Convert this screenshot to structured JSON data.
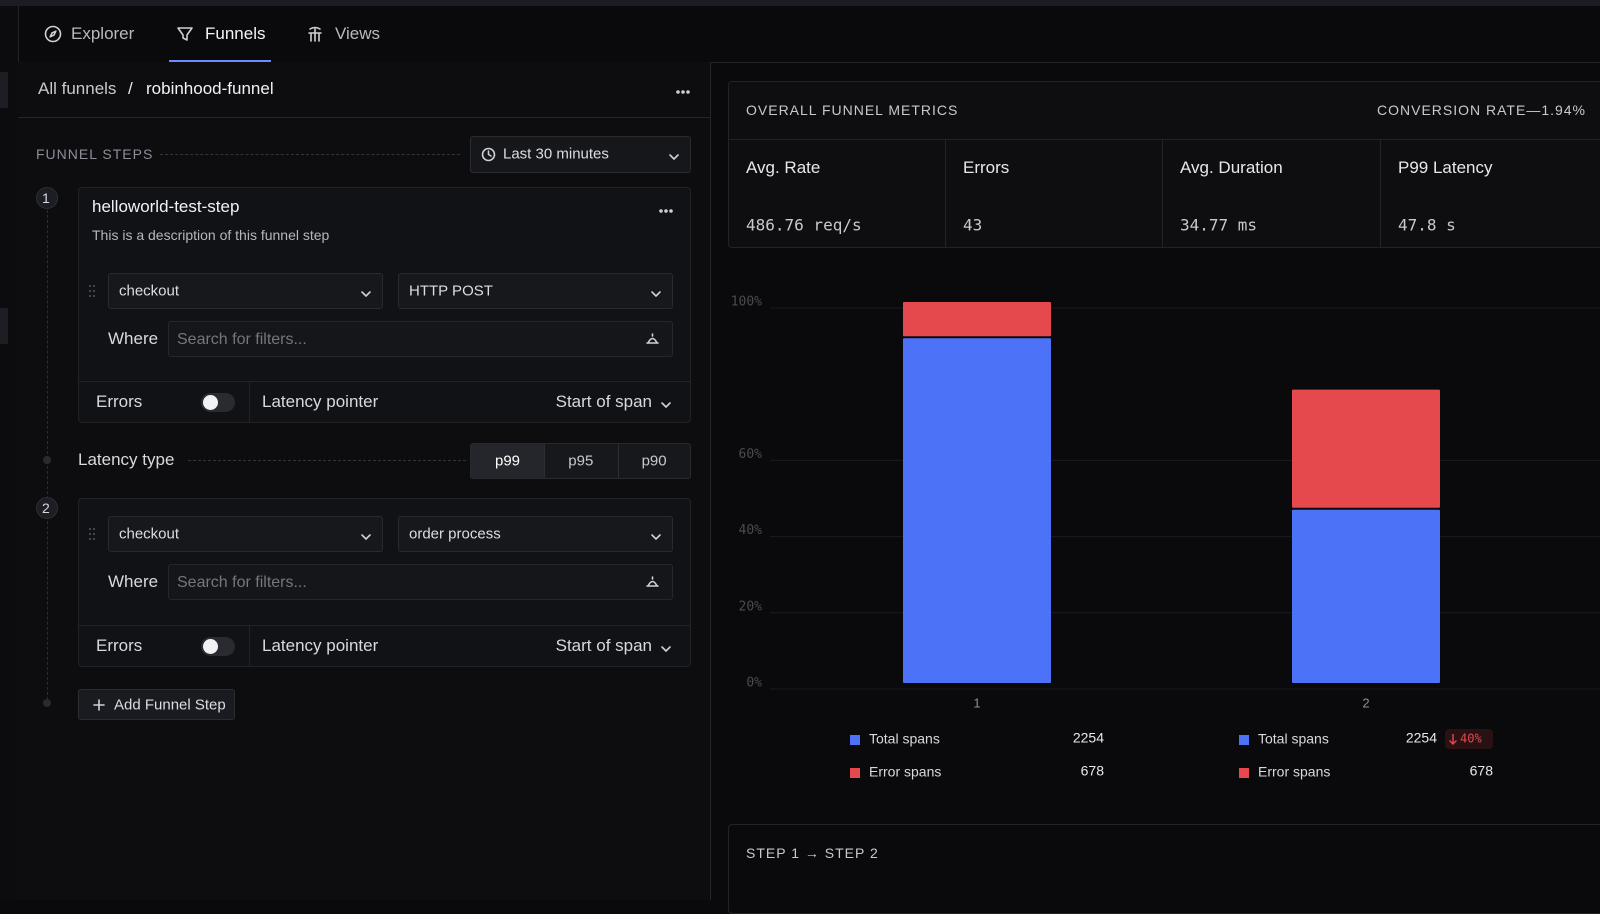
{
  "tabs": [
    "Explorer",
    "Funnels",
    "Views"
  ],
  "active_tab": 1,
  "breadcrumb": {
    "root": "All funnels",
    "separator": "/",
    "current": "robinhood-funnel"
  },
  "funnel_steps": {
    "heading": "FUNNEL STEPS",
    "time_range": "Last 30 minutes",
    "steps": [
      {
        "number": 1,
        "name": "helloworld-test-step",
        "description": "This is a description of this funnel step",
        "service": "checkout",
        "operation": "HTTP POST",
        "where_label": "Where",
        "filter_placeholder": "Search for filters...",
        "errors_label": "Errors",
        "latency_pointer_label": "Latency pointer",
        "latency_pointer": "Start of span"
      },
      {
        "number": 2,
        "service": "checkout",
        "operation": "order process",
        "where_label": "Where",
        "filter_placeholder": "Search for filters...",
        "errors_label": "Errors",
        "latency_pointer_label": "Latency pointer",
        "latency_pointer": "Start of span"
      }
    ],
    "latency_type": {
      "label": "Latency type",
      "options": [
        "p99",
        "p95",
        "p90"
      ],
      "selected_index": 0
    },
    "add_step": "Add Funnel Step"
  },
  "metrics": {
    "title": "OVERALL FUNNEL METRICS",
    "conversion": "CONVERSION RATE—1.94%",
    "cells": [
      {
        "label": "Avg. Rate",
        "value": "486.76 req/s"
      },
      {
        "label": "Errors",
        "value": "43"
      },
      {
        "label": "Avg. Duration",
        "value": "34.77 ms"
      },
      {
        "label": "P99 Latency",
        "value": "47.8 s"
      }
    ]
  },
  "chart_data": {
    "type": "stacked_bar",
    "categories": [
      "1",
      "2"
    ],
    "series": [
      {
        "name": "Total spans",
        "color": "#4c73f7",
        "values": [
          91,
          46
        ],
        "totals": [
          2254,
          2254
        ]
      },
      {
        "name": "Error spans",
        "color": "#e5484d",
        "values": [
          9,
          31
        ],
        "totals": [
          678,
          678
        ]
      }
    ],
    "changes": [
      null,
      "40%"
    ],
    "ylim": [
      0,
      100
    ],
    "yticks": [
      {
        "value": 0,
        "label": "0%"
      },
      {
        "value": 20,
        "label": "20%"
      },
      {
        "value": 40,
        "label": "40%"
      },
      {
        "value": 60,
        "label": "60%"
      },
      {
        "value": 100,
        "label": "100%"
      }
    ],
    "grid": true
  },
  "step_section": {
    "title": "STEP 1 → STEP 2"
  }
}
